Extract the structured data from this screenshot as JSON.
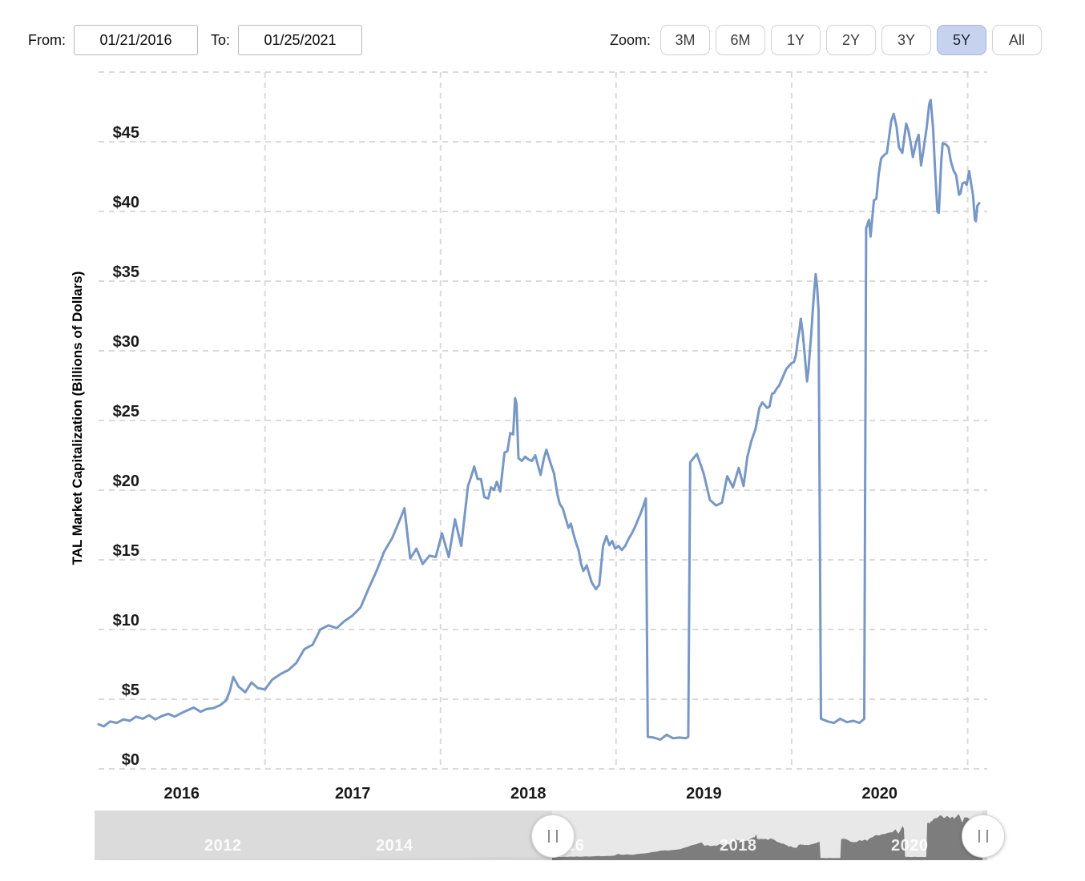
{
  "controls": {
    "from_label": "From:",
    "from_value": "01/21/2016",
    "to_label": "To:",
    "to_value": "01/25/2021",
    "zoom_label": "Zoom:",
    "zoom_buttons": [
      {
        "label": "3M",
        "selected": false
      },
      {
        "label": "6M",
        "selected": false
      },
      {
        "label": "1Y",
        "selected": false
      },
      {
        "label": "2Y",
        "selected": false
      },
      {
        "label": "3Y",
        "selected": false
      },
      {
        "label": "5Y",
        "selected": true
      },
      {
        "label": "All",
        "selected": false
      }
    ],
    "selected_zoom": "5Y",
    "selected_zoom_color": "#c6d3ef"
  },
  "chart_data": {
    "type": "line",
    "title": "",
    "xlabel": "",
    "ylabel": "TAL Market Capitalization (Billions of Dollars)",
    "series_name": "TAL Market Capitalization",
    "line_color": "#7797c5",
    "grid_color": "#dadada",
    "x_range": [
      "2016-01-21",
      "2021-01-25"
    ],
    "y_axis": {
      "min": 0,
      "max": 50,
      "tick_step": 5,
      "max_labeled": 45,
      "prefix": "$"
    },
    "x_tick_years": [
      2016,
      2017,
      2018,
      2019,
      2020
    ],
    "x_grid_years": [
      2017,
      2018,
      2019,
      2020,
      2021
    ],
    "points": [
      [
        "2016-01-21",
        3.2
      ],
      [
        "2016-02-01",
        3.05
      ],
      [
        "2016-02-14",
        3.4
      ],
      [
        "2016-02-28",
        3.3
      ],
      [
        "2016-03-13",
        3.55
      ],
      [
        "2016-03-26",
        3.45
      ],
      [
        "2016-04-08",
        3.75
      ],
      [
        "2016-04-22",
        3.6
      ],
      [
        "2016-05-05",
        3.85
      ],
      [
        "2016-05-18",
        3.55
      ],
      [
        "2016-06-01",
        3.8
      ],
      [
        "2016-06-14",
        3.95
      ],
      [
        "2016-06-27",
        3.75
      ],
      [
        "2016-07-11",
        4.0
      ],
      [
        "2016-07-24",
        4.2
      ],
      [
        "2016-08-06",
        4.4
      ],
      [
        "2016-08-20",
        4.1
      ],
      [
        "2016-09-02",
        4.3
      ],
      [
        "2016-09-15",
        4.35
      ],
      [
        "2016-09-29",
        4.55
      ],
      [
        "2016-10-12",
        4.9
      ],
      [
        "2016-10-20",
        5.6
      ],
      [
        "2016-10-27",
        6.6
      ],
      [
        "2016-11-07",
        5.9
      ],
      [
        "2016-11-21",
        5.5
      ],
      [
        "2016-12-04",
        6.2
      ],
      [
        "2016-12-17",
        5.8
      ],
      [
        "2017-01-01",
        5.7
      ],
      [
        "2017-01-16",
        6.4
      ],
      [
        "2017-02-02",
        6.8
      ],
      [
        "2017-02-19",
        7.1
      ],
      [
        "2017-03-07",
        7.6
      ],
      [
        "2017-03-24",
        8.6
      ],
      [
        "2017-04-10",
        8.9
      ],
      [
        "2017-04-26",
        10.0
      ],
      [
        "2017-05-13",
        10.3
      ],
      [
        "2017-05-30",
        10.1
      ],
      [
        "2017-06-15",
        10.6
      ],
      [
        "2017-07-02",
        11.0
      ],
      [
        "2017-07-19",
        11.6
      ],
      [
        "2017-08-04",
        12.9
      ],
      [
        "2017-08-21",
        14.2
      ],
      [
        "2017-09-06",
        15.6
      ],
      [
        "2017-09-23",
        16.6
      ],
      [
        "2017-10-10",
        18.0
      ],
      [
        "2017-10-18",
        18.7
      ],
      [
        "2017-10-30",
        15.1
      ],
      [
        "2017-11-12",
        15.8
      ],
      [
        "2017-11-25",
        14.7
      ],
      [
        "2017-12-09",
        15.3
      ],
      [
        "2017-12-22",
        15.2
      ],
      [
        "2018-01-04",
        16.9
      ],
      [
        "2018-01-18",
        15.2
      ],
      [
        "2018-01-31",
        17.9
      ],
      [
        "2018-02-13",
        16.0
      ],
      [
        "2018-02-27",
        20.3
      ],
      [
        "2018-03-05",
        20.9
      ],
      [
        "2018-03-12",
        21.7
      ],
      [
        "2018-03-19",
        20.8
      ],
      [
        "2018-03-26",
        20.8
      ],
      [
        "2018-04-02",
        19.5
      ],
      [
        "2018-04-10",
        19.4
      ],
      [
        "2018-04-16",
        20.2
      ],
      [
        "2018-04-22",
        20.0
      ],
      [
        "2018-04-28",
        20.6
      ],
      [
        "2018-05-05",
        19.9
      ],
      [
        "2018-05-14",
        22.7
      ],
      [
        "2018-05-20",
        22.8
      ],
      [
        "2018-05-26",
        24.1
      ],
      [
        "2018-06-01",
        24.0
      ],
      [
        "2018-06-05",
        26.6
      ],
      [
        "2018-06-08",
        26.2
      ],
      [
        "2018-06-12",
        22.3
      ],
      [
        "2018-06-19",
        22.1
      ],
      [
        "2018-06-26",
        22.4
      ],
      [
        "2018-07-03",
        22.2
      ],
      [
        "2018-07-10",
        22.1
      ],
      [
        "2018-07-17",
        22.5
      ],
      [
        "2018-07-24",
        21.6
      ],
      [
        "2018-07-28",
        21.1
      ],
      [
        "2018-08-04",
        22.3
      ],
      [
        "2018-08-09",
        22.9
      ],
      [
        "2018-08-18",
        21.9
      ],
      [
        "2018-08-25",
        21.2
      ],
      [
        "2018-09-01",
        19.7
      ],
      [
        "2018-09-06",
        19.0
      ],
      [
        "2018-09-12",
        18.7
      ],
      [
        "2018-09-18",
        18.0
      ],
      [
        "2018-09-24",
        17.3
      ],
      [
        "2018-09-29",
        17.6
      ],
      [
        "2018-10-04",
        16.9
      ],
      [
        "2018-10-09",
        16.3
      ],
      [
        "2018-10-15",
        15.7
      ],
      [
        "2018-10-20",
        14.75
      ],
      [
        "2018-10-25",
        14.2
      ],
      [
        "2018-11-01",
        14.6
      ],
      [
        "2018-11-06",
        14.0
      ],
      [
        "2018-11-11",
        13.4
      ],
      [
        "2018-11-20",
        12.9
      ],
      [
        "2018-11-27",
        13.2
      ],
      [
        "2018-12-05",
        16.0
      ],
      [
        "2018-12-12",
        16.7
      ],
      [
        "2018-12-18",
        16.05
      ],
      [
        "2018-12-24",
        16.35
      ],
      [
        "2018-12-30",
        15.8
      ],
      [
        "2019-01-06",
        16.0
      ],
      [
        "2019-01-13",
        15.7
      ],
      [
        "2019-01-20",
        16.0
      ],
      [
        "2019-01-27",
        16.5
      ],
      [
        "2019-02-03",
        16.9
      ],
      [
        "2019-02-10",
        17.4
      ],
      [
        "2019-02-17",
        18.0
      ],
      [
        "2019-02-22",
        18.4
      ],
      [
        "2019-02-27",
        18.9
      ],
      [
        "2019-03-04",
        19.4
      ],
      [
        "2019-03-08",
        2.3
      ],
      [
        "2019-03-20",
        2.25
      ],
      [
        "2019-04-03",
        2.1
      ],
      [
        "2019-04-16",
        2.45
      ],
      [
        "2019-04-29",
        2.2
      ],
      [
        "2019-05-13",
        2.25
      ],
      [
        "2019-05-26",
        2.2
      ],
      [
        "2019-05-31",
        2.3
      ],
      [
        "2019-06-04",
        22.0
      ],
      [
        "2019-06-18",
        22.6
      ],
      [
        "2019-07-02",
        21.2
      ],
      [
        "2019-07-15",
        19.3
      ],
      [
        "2019-07-28",
        18.9
      ],
      [
        "2019-08-09",
        19.1
      ],
      [
        "2019-08-20",
        21.0
      ],
      [
        "2019-09-01",
        20.2
      ],
      [
        "2019-09-13",
        21.6
      ],
      [
        "2019-09-23",
        20.3
      ],
      [
        "2019-10-01",
        22.4
      ],
      [
        "2019-10-09",
        23.5
      ],
      [
        "2019-10-18",
        24.4
      ],
      [
        "2019-10-26",
        25.9
      ],
      [
        "2019-11-01",
        26.3
      ],
      [
        "2019-11-06",
        26.1
      ],
      [
        "2019-11-11",
        25.9
      ],
      [
        "2019-11-16",
        26.0
      ],
      [
        "2019-11-21",
        26.9
      ],
      [
        "2019-11-26",
        27.0
      ],
      [
        "2019-12-01",
        27.3
      ],
      [
        "2019-12-06",
        27.5
      ],
      [
        "2019-12-11",
        27.9
      ],
      [
        "2019-12-16",
        28.3
      ],
      [
        "2019-12-21",
        28.7
      ],
      [
        "2019-12-26",
        28.9
      ],
      [
        "2019-12-31",
        29.1
      ],
      [
        "2020-01-06",
        29.2
      ],
      [
        "2020-01-10",
        29.7
      ],
      [
        "2020-01-14",
        30.8
      ],
      [
        "2020-01-17",
        31.4
      ],
      [
        "2020-01-20",
        32.3
      ],
      [
        "2020-01-24",
        31.3
      ],
      [
        "2020-01-27",
        30.2
      ],
      [
        "2020-01-30",
        29.0
      ],
      [
        "2020-02-02",
        27.8
      ],
      [
        "2020-02-05",
        28.65
      ],
      [
        "2020-02-08",
        30.0
      ],
      [
        "2020-02-11",
        31.3
      ],
      [
        "2020-02-14",
        32.9
      ],
      [
        "2020-02-17",
        34.3
      ],
      [
        "2020-02-20",
        35.5
      ],
      [
        "2020-02-23",
        34.6
      ],
      [
        "2020-02-26",
        32.9
      ],
      [
        "2020-03-02",
        3.6
      ],
      [
        "2020-03-16",
        3.4
      ],
      [
        "2020-03-29",
        3.3
      ],
      [
        "2020-04-11",
        3.6
      ],
      [
        "2020-04-25",
        3.35
      ],
      [
        "2020-05-08",
        3.45
      ],
      [
        "2020-05-21",
        3.3
      ],
      [
        "2020-05-31",
        3.6
      ],
      [
        "2020-06-04",
        38.8
      ],
      [
        "2020-06-10",
        39.4
      ],
      [
        "2020-06-13",
        38.2
      ],
      [
        "2020-06-20",
        40.8
      ],
      [
        "2020-06-25",
        40.9
      ],
      [
        "2020-06-30",
        42.7
      ],
      [
        "2020-07-05",
        43.8
      ],
      [
        "2020-07-10",
        44.0
      ],
      [
        "2020-07-17",
        44.2
      ],
      [
        "2020-07-26",
        46.5
      ],
      [
        "2020-07-31",
        47.0
      ],
      [
        "2020-08-06",
        46.1
      ],
      [
        "2020-08-11",
        44.6
      ],
      [
        "2020-08-18",
        44.2
      ],
      [
        "2020-08-26",
        46.3
      ],
      [
        "2020-08-30",
        45.9
      ],
      [
        "2020-09-04",
        45.0
      ],
      [
        "2020-09-09",
        43.9
      ],
      [
        "2020-09-16",
        45.0
      ],
      [
        "2020-09-21",
        45.5
      ],
      [
        "2020-09-26",
        43.3
      ],
      [
        "2020-10-01",
        44.4
      ],
      [
        "2020-10-08",
        46.1
      ],
      [
        "2020-10-13",
        47.7
      ],
      [
        "2020-10-16",
        48.0
      ],
      [
        "2020-10-21",
        46.0
      ],
      [
        "2020-10-25",
        43.1
      ],
      [
        "2020-10-30",
        40.0
      ],
      [
        "2020-11-02",
        39.9
      ],
      [
        "2020-11-07",
        43.6
      ],
      [
        "2020-11-10",
        44.9
      ],
      [
        "2020-11-17",
        44.8
      ],
      [
        "2020-11-22",
        44.6
      ],
      [
        "2020-11-27",
        43.6
      ],
      [
        "2020-12-03",
        42.9
      ],
      [
        "2020-12-08",
        42.6
      ],
      [
        "2020-12-14",
        41.2
      ],
      [
        "2020-12-17",
        41.3
      ],
      [
        "2020-12-21",
        42.0
      ],
      [
        "2020-12-26",
        42.1
      ],
      [
        "2020-12-30",
        41.9
      ],
      [
        "2021-01-04",
        42.9
      ],
      [
        "2021-01-09",
        41.8
      ],
      [
        "2021-01-12",
        41.2
      ],
      [
        "2021-01-16",
        39.4
      ],
      [
        "2021-01-18",
        39.3
      ],
      [
        "2021-01-21",
        40.4
      ],
      [
        "2021-01-25",
        40.6
      ]
    ]
  },
  "navigator": {
    "labels": [
      "2012",
      "2014",
      "2016",
      "2018",
      "2020"
    ],
    "handle_icon": "drag-pause-bars",
    "tail_points": [
      [
        "2010-10-20",
        0.9
      ],
      [
        "2011-02-01",
        1.3
      ],
      [
        "2011-06-01",
        1.1
      ],
      [
        "2011-10-01",
        0.95
      ],
      [
        "2012-02-01",
        1.0
      ],
      [
        "2012-06-01",
        0.9
      ],
      [
        "2012-10-01",
        1.05
      ],
      [
        "2013-02-01",
        1.2
      ],
      [
        "2013-06-01",
        1.3
      ],
      [
        "2013-10-01",
        1.5
      ],
      [
        "2014-02-01",
        1.8
      ],
      [
        "2014-06-01",
        1.9
      ],
      [
        "2014-10-01",
        2.3
      ],
      [
        "2015-02-01",
        2.6
      ],
      [
        "2015-05-01",
        3.1
      ],
      [
        "2015-08-01",
        3.3
      ],
      [
        "2015-10-01",
        2.9
      ],
      [
        "2015-12-01",
        3.3
      ]
    ]
  }
}
